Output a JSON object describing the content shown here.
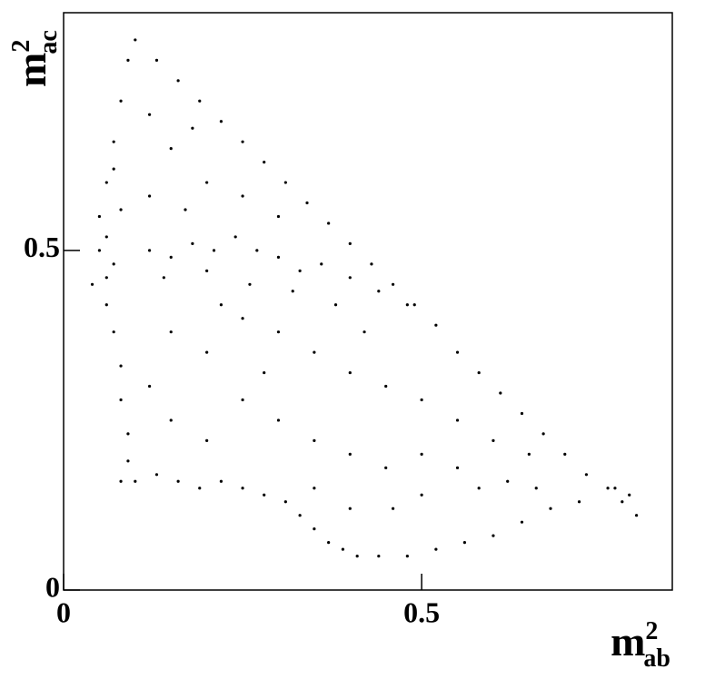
{
  "chart_data": {
    "type": "scatter",
    "xlabel": {
      "base": "m",
      "sup": "2",
      "sub": "ab"
    },
    "ylabel": {
      "base": "m",
      "sup": "2",
      "sub": "ac"
    },
    "xlim": [
      0,
      0.85
    ],
    "ylim": [
      0,
      0.85
    ],
    "xticks": [
      0,
      0.5
    ],
    "yticks": [
      0,
      0.5
    ],
    "color": "#000000",
    "x": [
      0.1,
      0.13,
      0.16,
      0.19,
      0.22,
      0.25,
      0.28,
      0.31,
      0.34,
      0.37,
      0.4,
      0.43,
      0.46,
      0.49,
      0.52,
      0.55,
      0.58,
      0.61,
      0.64,
      0.67,
      0.7,
      0.73,
      0.76,
      0.78,
      0.8,
      0.79,
      0.77,
      0.09,
      0.08,
      0.07,
      0.06,
      0.05,
      0.05,
      0.04,
      0.06,
      0.07,
      0.08,
      0.08,
      0.09,
      0.09,
      0.08,
      0.06,
      0.07,
      0.06,
      0.08,
      0.07,
      0.12,
      0.15,
      0.18,
      0.21,
      0.24,
      0.27,
      0.3,
      0.33,
      0.36,
      0.4,
      0.44,
      0.48,
      0.14,
      0.2,
      0.26,
      0.1,
      0.13,
      0.16,
      0.19,
      0.22,
      0.25,
      0.28,
      0.31,
      0.33,
      0.35,
      0.37,
      0.39,
      0.41,
      0.44,
      0.48,
      0.52,
      0.56,
      0.6,
      0.64,
      0.68,
      0.72,
      0.58,
      0.62,
      0.66,
      0.5,
      0.46,
      0.15,
      0.2,
      0.25,
      0.3,
      0.15,
      0.2,
      0.25,
      0.3,
      0.35,
      0.4,
      0.45,
      0.5,
      0.55,
      0.6,
      0.65,
      0.15,
      0.2,
      0.25,
      0.3,
      0.35,
      0.4,
      0.45,
      0.5,
      0.55,
      0.35,
      0.4,
      0.12,
      0.18,
      0.12,
      0.42,
      0.38,
      0.28,
      0.22,
      0.32,
      0.17,
      0.12
    ],
    "values": [
      0.81,
      0.78,
      0.75,
      0.72,
      0.69,
      0.66,
      0.63,
      0.6,
      0.57,
      0.54,
      0.51,
      0.48,
      0.45,
      0.42,
      0.39,
      0.35,
      0.32,
      0.29,
      0.26,
      0.23,
      0.2,
      0.17,
      0.15,
      0.13,
      0.11,
      0.14,
      0.15,
      0.78,
      0.72,
      0.66,
      0.6,
      0.55,
      0.5,
      0.45,
      0.42,
      0.38,
      0.33,
      0.28,
      0.23,
      0.19,
      0.16,
      0.52,
      0.48,
      0.46,
      0.56,
      0.62,
      0.5,
      0.49,
      0.51,
      0.5,
      0.52,
      0.5,
      0.49,
      0.47,
      0.48,
      0.46,
      0.44,
      0.42,
      0.46,
      0.47,
      0.45,
      0.16,
      0.17,
      0.16,
      0.15,
      0.16,
      0.15,
      0.14,
      0.13,
      0.11,
      0.09,
      0.07,
      0.06,
      0.05,
      0.05,
      0.05,
      0.06,
      0.07,
      0.08,
      0.1,
      0.12,
      0.13,
      0.15,
      0.16,
      0.15,
      0.14,
      0.12,
      0.65,
      0.6,
      0.58,
      0.55,
      0.38,
      0.35,
      0.4,
      0.38,
      0.35,
      0.32,
      0.3,
      0.28,
      0.25,
      0.22,
      0.2,
      0.25,
      0.22,
      0.28,
      0.25,
      0.22,
      0.2,
      0.18,
      0.2,
      0.18,
      0.15,
      0.12,
      0.7,
      0.68,
      0.3,
      0.38,
      0.42,
      0.32,
      0.42,
      0.44,
      0.56,
      0.58
    ]
  }
}
